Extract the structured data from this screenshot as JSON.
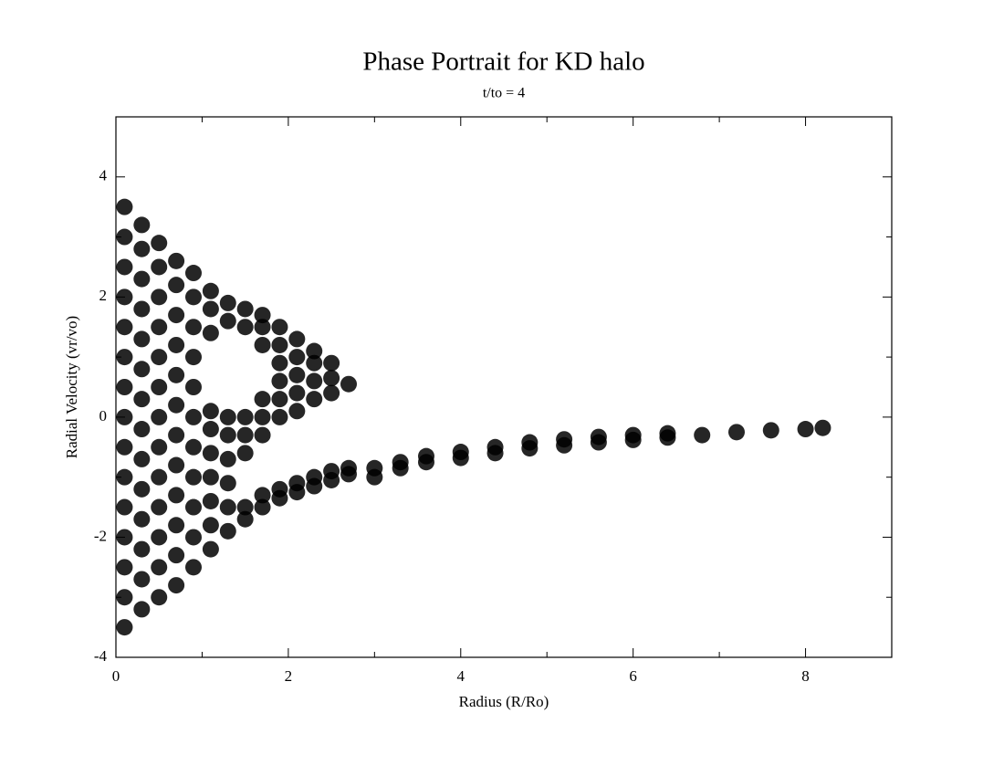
{
  "chart_data": {
    "type": "scatter",
    "title": "Phase Portrait for KD halo",
    "subtitle": "t/to = 4",
    "xlabel": "Radius (R/Ro)",
    "ylabel": "Radial Velocity (vr/vo)",
    "color": "#000000",
    "xlim": [
      0,
      9
    ],
    "ylim": [
      -4,
      5
    ],
    "xticks": [
      0,
      2,
      4,
      6,
      8
    ],
    "yticks": [
      -4,
      -2,
      0,
      2,
      4
    ],
    "xminorticks": [
      1,
      3,
      5,
      7,
      9
    ],
    "yminorticks": [
      -3,
      -1,
      1,
      3,
      5
    ],
    "x": [
      0.1,
      0.1,
      0.1,
      0.1,
      0.1,
      0.1,
      0.1,
      0.1,
      0.1,
      0.1,
      0.1,
      0.1,
      0.1,
      0.1,
      0.1,
      0.3,
      0.3,
      0.3,
      0.3,
      0.3,
      0.3,
      0.3,
      0.3,
      0.3,
      0.3,
      0.3,
      0.3,
      0.3,
      0.3,
      0.5,
      0.5,
      0.5,
      0.5,
      0.5,
      0.5,
      0.5,
      0.5,
      0.5,
      0.5,
      0.5,
      0.5,
      0.5,
      0.7,
      0.7,
      0.7,
      0.7,
      0.7,
      0.7,
      0.7,
      0.7,
      0.7,
      0.7,
      0.7,
      0.7,
      0.9,
      0.9,
      0.9,
      0.9,
      0.9,
      0.9,
      0.9,
      0.9,
      0.9,
      0.9,
      0.9,
      1.1,
      1.1,
      1.1,
      1.1,
      1.1,
      1.1,
      1.1,
      1.1,
      1.1,
      1.1,
      1.3,
      1.3,
      1.3,
      1.3,
      1.3,
      1.3,
      1.3,
      1.3,
      1.5,
      1.5,
      1.5,
      1.5,
      1.5,
      1.5,
      1.5,
      1.7,
      1.7,
      1.7,
      1.7,
      1.7,
      1.7,
      1.7,
      1.7,
      1.9,
      1.9,
      1.9,
      1.9,
      1.9,
      1.9,
      1.9,
      1.9,
      2.1,
      2.1,
      2.1,
      2.1,
      2.1,
      2.1,
      2.1,
      2.3,
      2.3,
      2.3,
      2.3,
      2.3,
      2.3,
      2.5,
      2.5,
      2.5,
      2.5,
      2.5,
      2.7,
      2.7,
      2.7,
      3,
      3,
      3.3,
      3.3,
      3.6,
      3.6,
      4,
      4,
      4.4,
      4.4,
      4.8,
      4.8,
      5.2,
      5.2,
      5.6,
      5.6,
      6,
      6,
      6.4,
      6.4,
      6.8,
      7.2,
      7.6,
      8,
      8.2
    ],
    "values": [
      -3.5,
      -3,
      -2.5,
      -2,
      -1.5,
      -1,
      -0.5,
      0,
      0.5,
      1,
      1.5,
      2,
      2.5,
      3,
      3.5,
      -3.2,
      -2.7,
      -2.2,
      -1.7,
      -1.2,
      -0.7,
      -0.2,
      0.3,
      0.8,
      1.3,
      1.8,
      2.3,
      2.8,
      3.2,
      -3,
      -2.5,
      -2,
      -1.5,
      -1,
      -0.5,
      0,
      0.5,
      1,
      1.5,
      2,
      2.5,
      2.9,
      -2.8,
      -2.3,
      -1.8,
      -1.3,
      -0.8,
      -0.3,
      0.2,
      0.7,
      1.2,
      1.7,
      2.2,
      2.6,
      -2.5,
      -2,
      -1.5,
      -1,
      -0.5,
      0,
      0.5,
      1,
      1.5,
      2,
      2.4,
      -2.2,
      -1.8,
      -1.4,
      -1,
      -0.6,
      -0.2,
      0.1,
      1.4,
      1.8,
      2.1,
      -1.9,
      -1.5,
      -1.1,
      -0.7,
      -0.3,
      0,
      1.6,
      1.9,
      -1.7,
      -1.5,
      -0.6,
      -0.3,
      0,
      1.5,
      1.8,
      -1.5,
      -1.3,
      -0.3,
      0,
      0.3,
      1.2,
      1.5,
      1.7,
      -1.35,
      -1.2,
      0,
      0.3,
      0.6,
      0.9,
      1.2,
      1.5,
      -1.25,
      -1.1,
      0.1,
      0.4,
      0.7,
      1,
      1.3,
      -1.15,
      -1,
      0.3,
      0.6,
      0.9,
      1.1,
      -1.05,
      -0.9,
      0.4,
      0.65,
      0.9,
      -0.95,
      -0.85,
      0.55,
      -1,
      -0.85,
      -0.85,
      -0.75,
      -0.75,
      -0.65,
      -0.68,
      -0.58,
      -0.6,
      -0.5,
      -0.52,
      -0.42,
      -0.47,
      -0.37,
      -0.42,
      -0.33,
      -0.38,
      -0.3,
      -0.34,
      -0.27,
      -0.3,
      -0.25,
      -0.22,
      -0.2,
      -0.18
    ]
  }
}
